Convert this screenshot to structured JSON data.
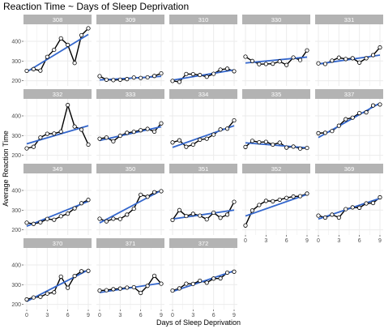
{
  "chart_data": {
    "type": "line",
    "title": "Reaction Time ~ Days of Sleep Deprivation",
    "xlabel": "Days of Sleep Deprivation",
    "ylabel": "Average Reaction Time",
    "xlim": [
      0,
      9
    ],
    "ylim": [
      190,
      470
    ],
    "x_ticks": [
      0,
      3,
      6,
      9
    ],
    "y_ticks": [
      200,
      300,
      400
    ],
    "x": [
      0,
      1,
      2,
      3,
      4,
      5,
      6,
      7,
      8,
      9
    ],
    "grid": true,
    "colors": {
      "strip": "#b3b3b3",
      "grid": "#ebebeb",
      "line": "#000000",
      "fit": "#3366cc",
      "point_fill": "#ffffff"
    },
    "panels": [
      {
        "label": "308",
        "values": [
          250,
          259,
          251,
          321,
          357,
          415,
          382,
          290,
          431,
          466
        ],
        "fit": [
          245,
          435
        ]
      },
      {
        "label": "309",
        "values": [
          223,
          205,
          203,
          205,
          208,
          216,
          214,
          217,
          224,
          237
        ],
        "fit": [
          204,
          222
        ]
      },
      {
        "label": "310",
        "values": [
          199,
          194,
          234,
          233,
          229,
          220,
          235,
          256,
          261,
          248
        ],
        "fit": [
          203,
          255
        ]
      },
      {
        "label": "330",
        "values": [
          322,
          300,
          284,
          285,
          286,
          298,
          280,
          318,
          305,
          354
        ],
        "fit": [
          290,
          320
        ]
      },
      {
        "label": "331",
        "values": [
          288,
          285,
          302,
          317,
          310,
          314,
          292,
          314,
          330,
          369
        ],
        "fit": [
          285,
          330
        ]
      },
      {
        "label": "332",
        "values": [
          235,
          243,
          290,
          309,
          310,
          320,
          455,
          346,
          330,
          254
        ],
        "fit": [
          258,
          350
        ]
      },
      {
        "label": "333",
        "values": [
          284,
          290,
          271,
          299,
          314,
          319,
          327,
          334,
          320,
          362
        ],
        "fit": [
          275,
          345
        ]
      },
      {
        "label": "334",
        "values": [
          265,
          276,
          243,
          254,
          279,
          284,
          305,
          331,
          335,
          377
        ],
        "fit": [
          240,
          350
        ]
      },
      {
        "label": "335",
        "values": [
          242,
          273,
          266,
          268,
          254,
          264,
          239,
          244,
          234,
          237
        ],
        "fit": [
          263,
          238
        ]
      },
      {
        "label": "337",
        "values": [
          312,
          314,
          323,
          350,
          383,
          391,
          414,
          418,
          453,
          458
        ],
        "fit": [
          290,
          465
        ]
      },
      {
        "label": "349",
        "values": [
          236,
          230,
          238,
          255,
          251,
          269,
          282,
          309,
          335,
          352
        ],
        "fit": [
          218,
          345
        ]
      },
      {
        "label": "350",
        "values": [
          256,
          243,
          256,
          255,
          277,
          307,
          378,
          368,
          391,
          396
        ],
        "fit": [
          235,
          400
        ]
      },
      {
        "label": "351",
        "values": [
          250,
          300,
          270,
          281,
          272,
          253,
          287,
          261,
          277,
          342
        ],
        "fit": [
          255,
          300
        ]
      },
      {
        "label": "352",
        "values": [
          222,
          298,
          326,
          347,
          345,
          353,
          362,
          369,
          371,
          384
        ],
        "fit": [
          270,
          380
        ]
      },
      {
        "label": "369",
        "values": [
          272,
          262,
          277,
          262,
          305,
          314,
          312,
          334,
          336,
          365
        ],
        "fit": [
          255,
          360
        ]
      },
      {
        "label": "370",
        "values": [
          225,
          235,
          238,
          255,
          261,
          341,
          284,
          344,
          368,
          370
        ],
        "fit": [
          215,
          375
        ]
      },
      {
        "label": "371",
        "values": [
          270,
          272,
          277,
          280,
          285,
          287,
          258,
          294,
          345,
          305
        ],
        "fit": [
          260,
          308
        ]
      },
      {
        "label": "372",
        "values": [
          270,
          281,
          305,
          304,
          320,
          310,
          331,
          332,
          361,
          366
        ],
        "fit": [
          265,
          370
        ]
      }
    ]
  }
}
